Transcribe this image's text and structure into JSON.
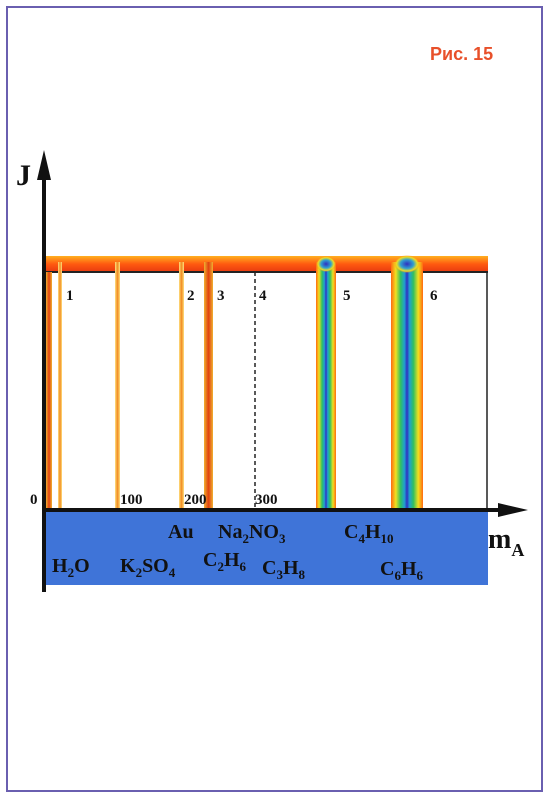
{
  "caption": "Рис. 15",
  "axes": {
    "y_label": "J",
    "x_label_main": "m",
    "x_label_sub": "A"
  },
  "ticks": [
    "0",
    "100",
    "200",
    "300"
  ],
  "region_numbers": [
    "1",
    "2",
    "3",
    "4",
    "5",
    "6"
  ],
  "substances": {
    "au": "Au",
    "h2o": {
      "a": "H",
      "b": "2",
      "c": "O"
    },
    "k2so4": {
      "a": "K",
      "b": "2",
      "c": "SO",
      "d": "4"
    },
    "c2h6": {
      "a": "C",
      "b": "2",
      "c": "H",
      "d": "6"
    },
    "na2no3": {
      "a": "Na",
      "b": "2",
      "c": "NO",
      "d": "3"
    },
    "c3h8": {
      "a": "C",
      "b": "3",
      "c": "H",
      "d": "8"
    },
    "c4h10": {
      "a": "C",
      "b": "4",
      "c": "H",
      "d": "10"
    },
    "c6h6": {
      "a": "C",
      "b": "6",
      "c": "H",
      "d": "6"
    }
  },
  "colors": {
    "band": "#ff7a1a",
    "base": "#3f74d8",
    "frame": "#6a5fb0",
    "caption": "#e8502a"
  }
}
